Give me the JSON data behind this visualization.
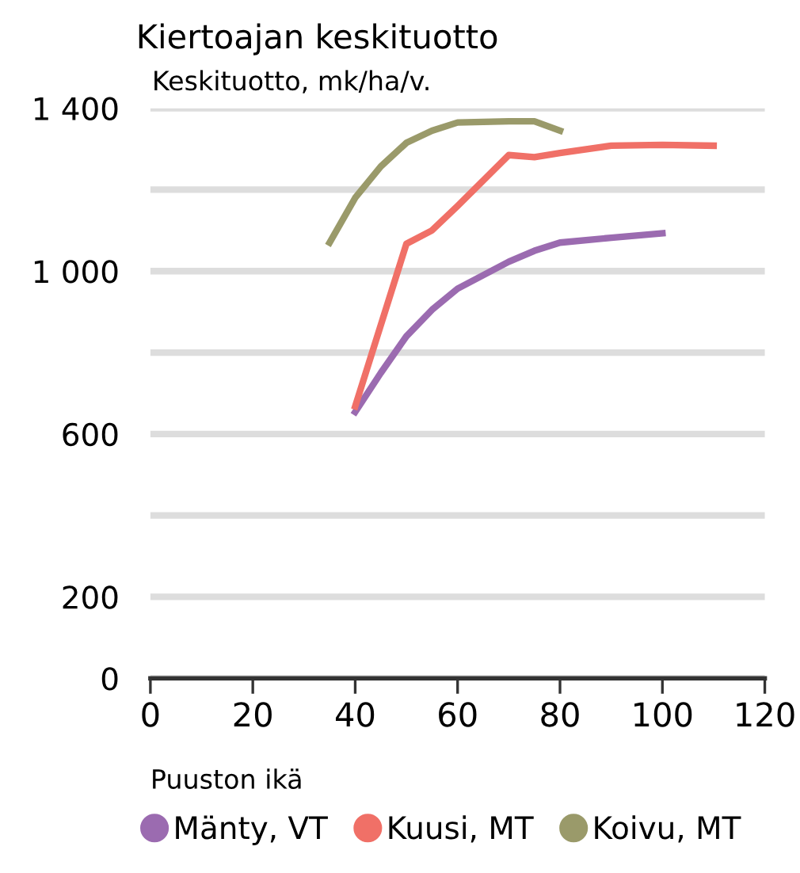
{
  "chart_data": {
    "type": "line",
    "title": "Kiertoajan keskituotto",
    "ylabel": "Keskituotto, mk/ha/v.",
    "xlabel": "Puuston ikä",
    "xlim": [
      0,
      120
    ],
    "xticks": [
      0,
      20,
      40,
      60,
      80,
      100,
      120
    ],
    "ylim": [
      0,
      1400
    ],
    "yticks": [
      0,
      200,
      {
        "value": 400,
        "label": null
      },
      600,
      {
        "value": 800,
        "label": null
      },
      {
        "value": 1000,
        "label": "1 000"
      },
      {
        "value": 1200,
        "label": null
      },
      {
        "value": 1400,
        "label": "1 400"
      }
    ],
    "grid": "y",
    "legend": "bottom",
    "marker": "none",
    "line_style": "solid",
    "series": [
      {
        "name": "Mänty, VT",
        "color": "#9b6bb0",
        "x": [
          40,
          45,
          50,
          55,
          60,
          70,
          75,
          80,
          90,
          100
        ],
        "values": [
          654,
          750,
          840,
          905,
          957,
          1023,
          1050,
          1070,
          1082,
          1093
        ]
      },
      {
        "name": "Kuusi, MT",
        "color": "#f07067",
        "x": [
          40,
          50,
          55,
          60,
          70,
          75,
          80,
          90,
          100,
          110
        ],
        "values": [
          668,
          1067,
          1100,
          1160,
          1285,
          1280,
          1290,
          1308,
          1310,
          1308
        ]
      },
      {
        "name": "Koivu, MT",
        "color": "#9a9a6a",
        "x": [
          35,
          40,
          45,
          50,
          55,
          60,
          70,
          75,
          80
        ],
        "values": [
          1070,
          1180,
          1257,
          1315,
          1345,
          1365,
          1368,
          1368,
          1345
        ]
      }
    ]
  }
}
